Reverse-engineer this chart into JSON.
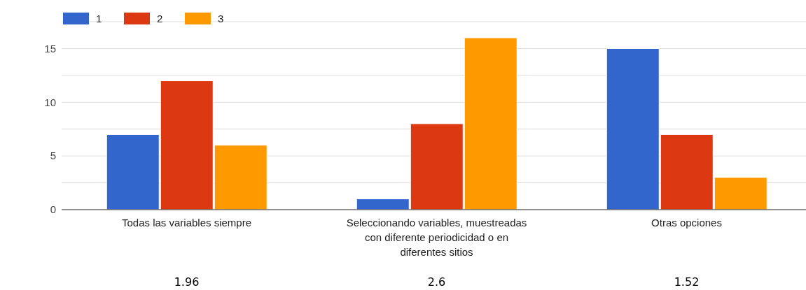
{
  "chart_data": {
    "type": "bar",
    "categories": [
      "Todas las variables siempre",
      "Seleccionando variables, muestreadas con diferente periodicidad o en diferentes sitios",
      "Otras opciones"
    ],
    "series": [
      {
        "name": "1",
        "color": "#3366cc",
        "values": [
          7,
          1,
          15
        ]
      },
      {
        "name": "2",
        "color": "#dc3912",
        "values": [
          12,
          8,
          7
        ]
      },
      {
        "name": "3",
        "color": "#ff9900",
        "values": [
          6,
          16,
          3
        ]
      }
    ],
    "ylim": [
      0,
      17.5
    ],
    "yticks": [
      0,
      {
        "value": 2.5,
        "label": null
      },
      5,
      {
        "value": 7.5,
        "label": null
      },
      10,
      {
        "value": 12.5,
        "label": null
      },
      15,
      {
        "value": 17.5,
        "label": null
      }
    ],
    "grid": "y",
    "legend": "top left",
    "annotations": [
      "1.96",
      "2.6",
      "1.52"
    ]
  }
}
